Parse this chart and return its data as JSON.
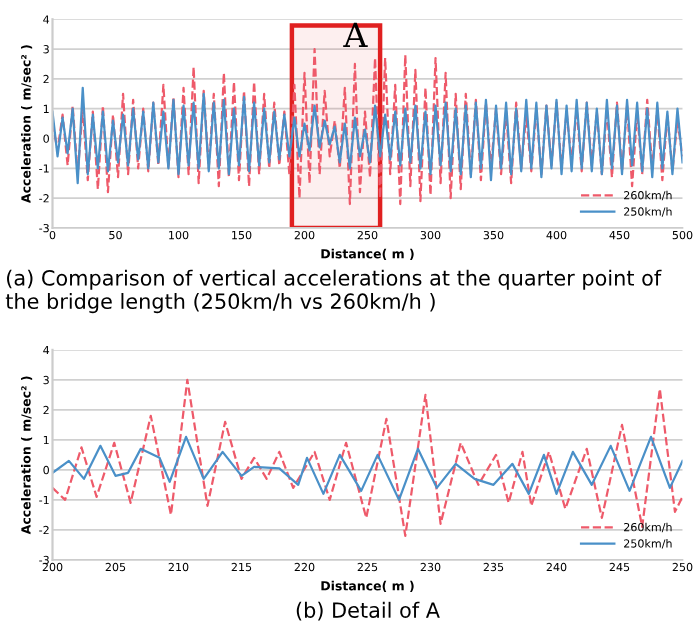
{
  "chart_data": [
    {
      "type": "line",
      "xlabel": "Distance( m )",
      "ylabel": "Acceleration ( m/sec² )",
      "annotations": [
        "(a) Comparison of vertical accelerations at the quarter point of the bridge length (250km/h vs 260km/h )"
      ],
      "xlim": [
        0,
        500
      ],
      "xticks": [
        0,
        50,
        100,
        150,
        200,
        250,
        300,
        350,
        400,
        450,
        500
      ],
      "ylim": [
        -3,
        4
      ],
      "yticks": [
        -3,
        -2,
        -1,
        0,
        1,
        2,
        3,
        4
      ],
      "grid": "y",
      "legend": "bottom right",
      "bands": [
        {
          "axis": "x",
          "from": 190,
          "to": 260,
          "label": "A",
          "color": "#e02020"
        }
      ],
      "x": [
        0,
        4,
        8,
        12,
        16,
        20,
        24,
        28,
        32,
        36,
        40,
        44,
        48,
        52,
        56,
        60,
        64,
        68,
        72,
        76,
        80,
        84,
        88,
        92,
        96,
        100,
        104,
        108,
        112,
        116,
        120,
        124,
        128,
        132,
        136,
        140,
        144,
        148,
        152,
        156,
        160,
        164,
        168,
        172,
        176,
        180,
        184,
        188,
        192,
        196,
        200,
        204,
        208,
        212,
        216,
        220,
        224,
        228,
        232,
        236,
        240,
        244,
        248,
        252,
        256,
        260,
        264,
        268,
        272,
        276,
        280,
        284,
        288,
        292,
        296,
        300,
        304,
        308,
        312,
        316,
        320,
        324,
        328,
        332,
        336,
        340,
        344,
        348,
        352,
        356,
        360,
        364,
        368,
        372,
        376,
        380,
        384,
        388,
        392,
        396,
        400,
        404,
        408,
        412,
        416,
        420,
        424,
        428,
        432,
        436,
        440,
        444,
        448,
        452,
        456,
        460,
        464,
        468,
        472,
        476,
        480,
        484,
        488,
        492,
        496,
        500
      ],
      "series": [
        {
          "name": "260km/h",
          "color": "#ee5a6a",
          "line_style": "dashed",
          "values": [
            0.5,
            -0.4,
            0.8,
            -0.9,
            1.1,
            -1.2,
            1.0,
            -1.4,
            0.9,
            -1.7,
            1.1,
            -1.8,
            0.8,
            -1.3,
            1.5,
            -1.2,
            1.3,
            -1.0,
            1.0,
            -1.1,
            1.2,
            -0.9,
            1.8,
            -1.0,
            1.4,
            -1.3,
            1.7,
            -1.2,
            2.4,
            -1.5,
            1.6,
            -1.0,
            1.5,
            -1.6,
            2.2,
            -1.3,
            1.9,
            -1.4,
            1.6,
            -1.6,
            1.9,
            -1.2,
            1.5,
            -1.0,
            1.2,
            -0.9,
            0.9,
            -1.2,
            1.8,
            -2.0,
            2.2,
            -1.5,
            3.0,
            -1.2,
            1.6,
            -0.6,
            0.6,
            -1.0,
            1.7,
            -2.2,
            2.5,
            -1.8,
            0.9,
            -1.3,
            2.7,
            -2.0,
            2.7,
            -1.2,
            1.8,
            -2.2,
            2.8,
            -1.6,
            2.3,
            -2.1,
            1.7,
            -1.9,
            2.7,
            -1.5,
            2.2,
            -2.0,
            1.5,
            -1.7,
            1.5,
            -1.2,
            1.3,
            -1.4,
            1.2,
            -1.0,
            1.0,
            -1.2,
            0.9,
            -1.5,
            1.2,
            -1.0,
            0.8,
            -1.1,
            1.0,
            -1.2,
            1.1,
            -0.9,
            1.2,
            -1.0,
            0.9,
            -0.8,
            1.0,
            -1.1,
            1.2,
            -0.9,
            0.9,
            -1.2,
            1.0,
            -1.3,
            1.2,
            -1.1,
            1.1,
            -1.6,
            0.9,
            -1.2,
            1.3,
            -1.0,
            1.0,
            -1.4,
            0.8,
            -1.1,
            0.6,
            -0.6
          ]
        },
        {
          "name": "250km/h",
          "color": "#4a90c8",
          "line_style": "solid",
          "values": [
            0.9,
            -0.6,
            0.7,
            -0.5,
            1.0,
            -1.5,
            1.7,
            -1.2,
            0.8,
            -1.0,
            0.9,
            -1.1,
            0.6,
            -0.8,
            0.8,
            -0.9,
            1.0,
            -0.7,
            0.9,
            -1.0,
            1.2,
            -0.8,
            0.9,
            -1.0,
            1.3,
            -1.2,
            1.1,
            -0.9,
            1.2,
            -1.0,
            1.5,
            -1.1,
            1.2,
            -1.0,
            1.3,
            -1.2,
            1.0,
            -0.9,
            1.4,
            -1.1,
            1.2,
            -0.9,
            1.0,
            -0.8,
            0.9,
            -0.7,
            0.8,
            -0.6,
            0.7,
            -0.6,
            0.5,
            -0.4,
            1.1,
            -0.3,
            0.6,
            -0.2,
            0.4,
            -0.8,
            0.5,
            -1.0,
            0.7,
            -0.6,
            0.3,
            -0.8,
            1.1,
            -0.6,
            0.8,
            -0.7,
            0.9,
            -0.9,
            1.0,
            -0.8,
            1.1,
            -1.0,
            0.9,
            -1.2,
            1.1,
            -0.9,
            1.2,
            -1.1,
            1.0,
            -1.2,
            1.1,
            -1.3,
            1.2,
            -1.0,
            1.3,
            -1.4,
            1.1,
            -1.0,
            1.2,
            -1.2,
            1.0,
            -1.1,
            1.3,
            -1.0,
            1.2,
            -1.3,
            1.1,
            -1.0,
            1.3,
            -1.2,
            1.1,
            -1.1,
            1.3,
            -1.0,
            1.2,
            -1.1,
            1.0,
            -1.2,
            1.3,
            -1.0,
            1.1,
            -1.2,
            1.3,
            -0.9,
            1.2,
            -1.1,
            1.0,
            -1.3,
            1.2,
            -1.0,
            0.9,
            -1.2,
            1.0,
            -0.8
          ]
        }
      ]
    },
    {
      "type": "line",
      "xlabel": "Distance( m )",
      "ylabel": "Acceleration ( m/sec² )",
      "annotations": [
        "(b) Detail of A"
      ],
      "xlim": [
        200,
        250
      ],
      "xticks": [
        200,
        205,
        210,
        215,
        220,
        225,
        230,
        235,
        240,
        245,
        250
      ],
      "ylim": [
        -3,
        4
      ],
      "yticks": [
        -3,
        -2,
        -1,
        0,
        1,
        2,
        3,
        4
      ],
      "grid": "y",
      "legend": "bottom right",
      "series": [
        {
          "name": "260km/h",
          "color": "#ee5a6a",
          "line_style": "dashed",
          "x": [
            200,
            201,
            202.3,
            203.5,
            204.9,
            206.2,
            207.8,
            209.4,
            210.7,
            212.3,
            213.7,
            215,
            216,
            217,
            218,
            219.1,
            220.8,
            222,
            223.3,
            224.9,
            226.5,
            228,
            229.6,
            230.8,
            232.4,
            233.8,
            235.2,
            236.2,
            237.3,
            238,
            239.4,
            240.7,
            242.4,
            243.6,
            245.2,
            246.8,
            248.2,
            249.4,
            250
          ],
          "values": [
            -0.6,
            -1.0,
            0.75,
            -0.9,
            0.9,
            -1.1,
            1.8,
            -1.5,
            3.0,
            -1.2,
            1.6,
            -0.3,
            0.4,
            -0.3,
            0.6,
            -0.6,
            0.6,
            -1.0,
            0.9,
            -1.6,
            1.7,
            -2.2,
            2.5,
            -1.8,
            0.9,
            -0.5,
            0.5,
            -1.1,
            0.6,
            -1.2,
            0.6,
            -1.3,
            0.7,
            -1.6,
            1.5,
            -1.9,
            2.7,
            -1.4,
            -0.9
          ]
        },
        {
          "name": "250km/h",
          "color": "#4a90c8",
          "line_style": "solid",
          "x": [
            200,
            201.3,
            202.5,
            203.8,
            205,
            206,
            207,
            208.5,
            209.3,
            210.6,
            212,
            213.5,
            215,
            216,
            218,
            219.5,
            220.2,
            221.5,
            222.8,
            224.5,
            225.8,
            227.5,
            229,
            230.5,
            232,
            233.5,
            235,
            236.5,
            237.8,
            239,
            240,
            241.3,
            242.8,
            244.3,
            245.8,
            247.5,
            249,
            250
          ],
          "values": [
            -0.1,
            0.3,
            -0.3,
            0.8,
            -0.2,
            -0.1,
            0.7,
            0.4,
            -0.4,
            1.1,
            -0.3,
            0.6,
            -0.2,
            0.1,
            0.05,
            -0.5,
            0.4,
            -0.8,
            0.5,
            -0.7,
            0.5,
            -1.0,
            0.7,
            -0.6,
            0.2,
            -0.3,
            -0.5,
            0.2,
            -0.8,
            0.5,
            -0.8,
            0.6,
            -0.5,
            0.8,
            -0.7,
            1.1,
            -0.6,
            0.3
          ]
        }
      ]
    }
  ]
}
